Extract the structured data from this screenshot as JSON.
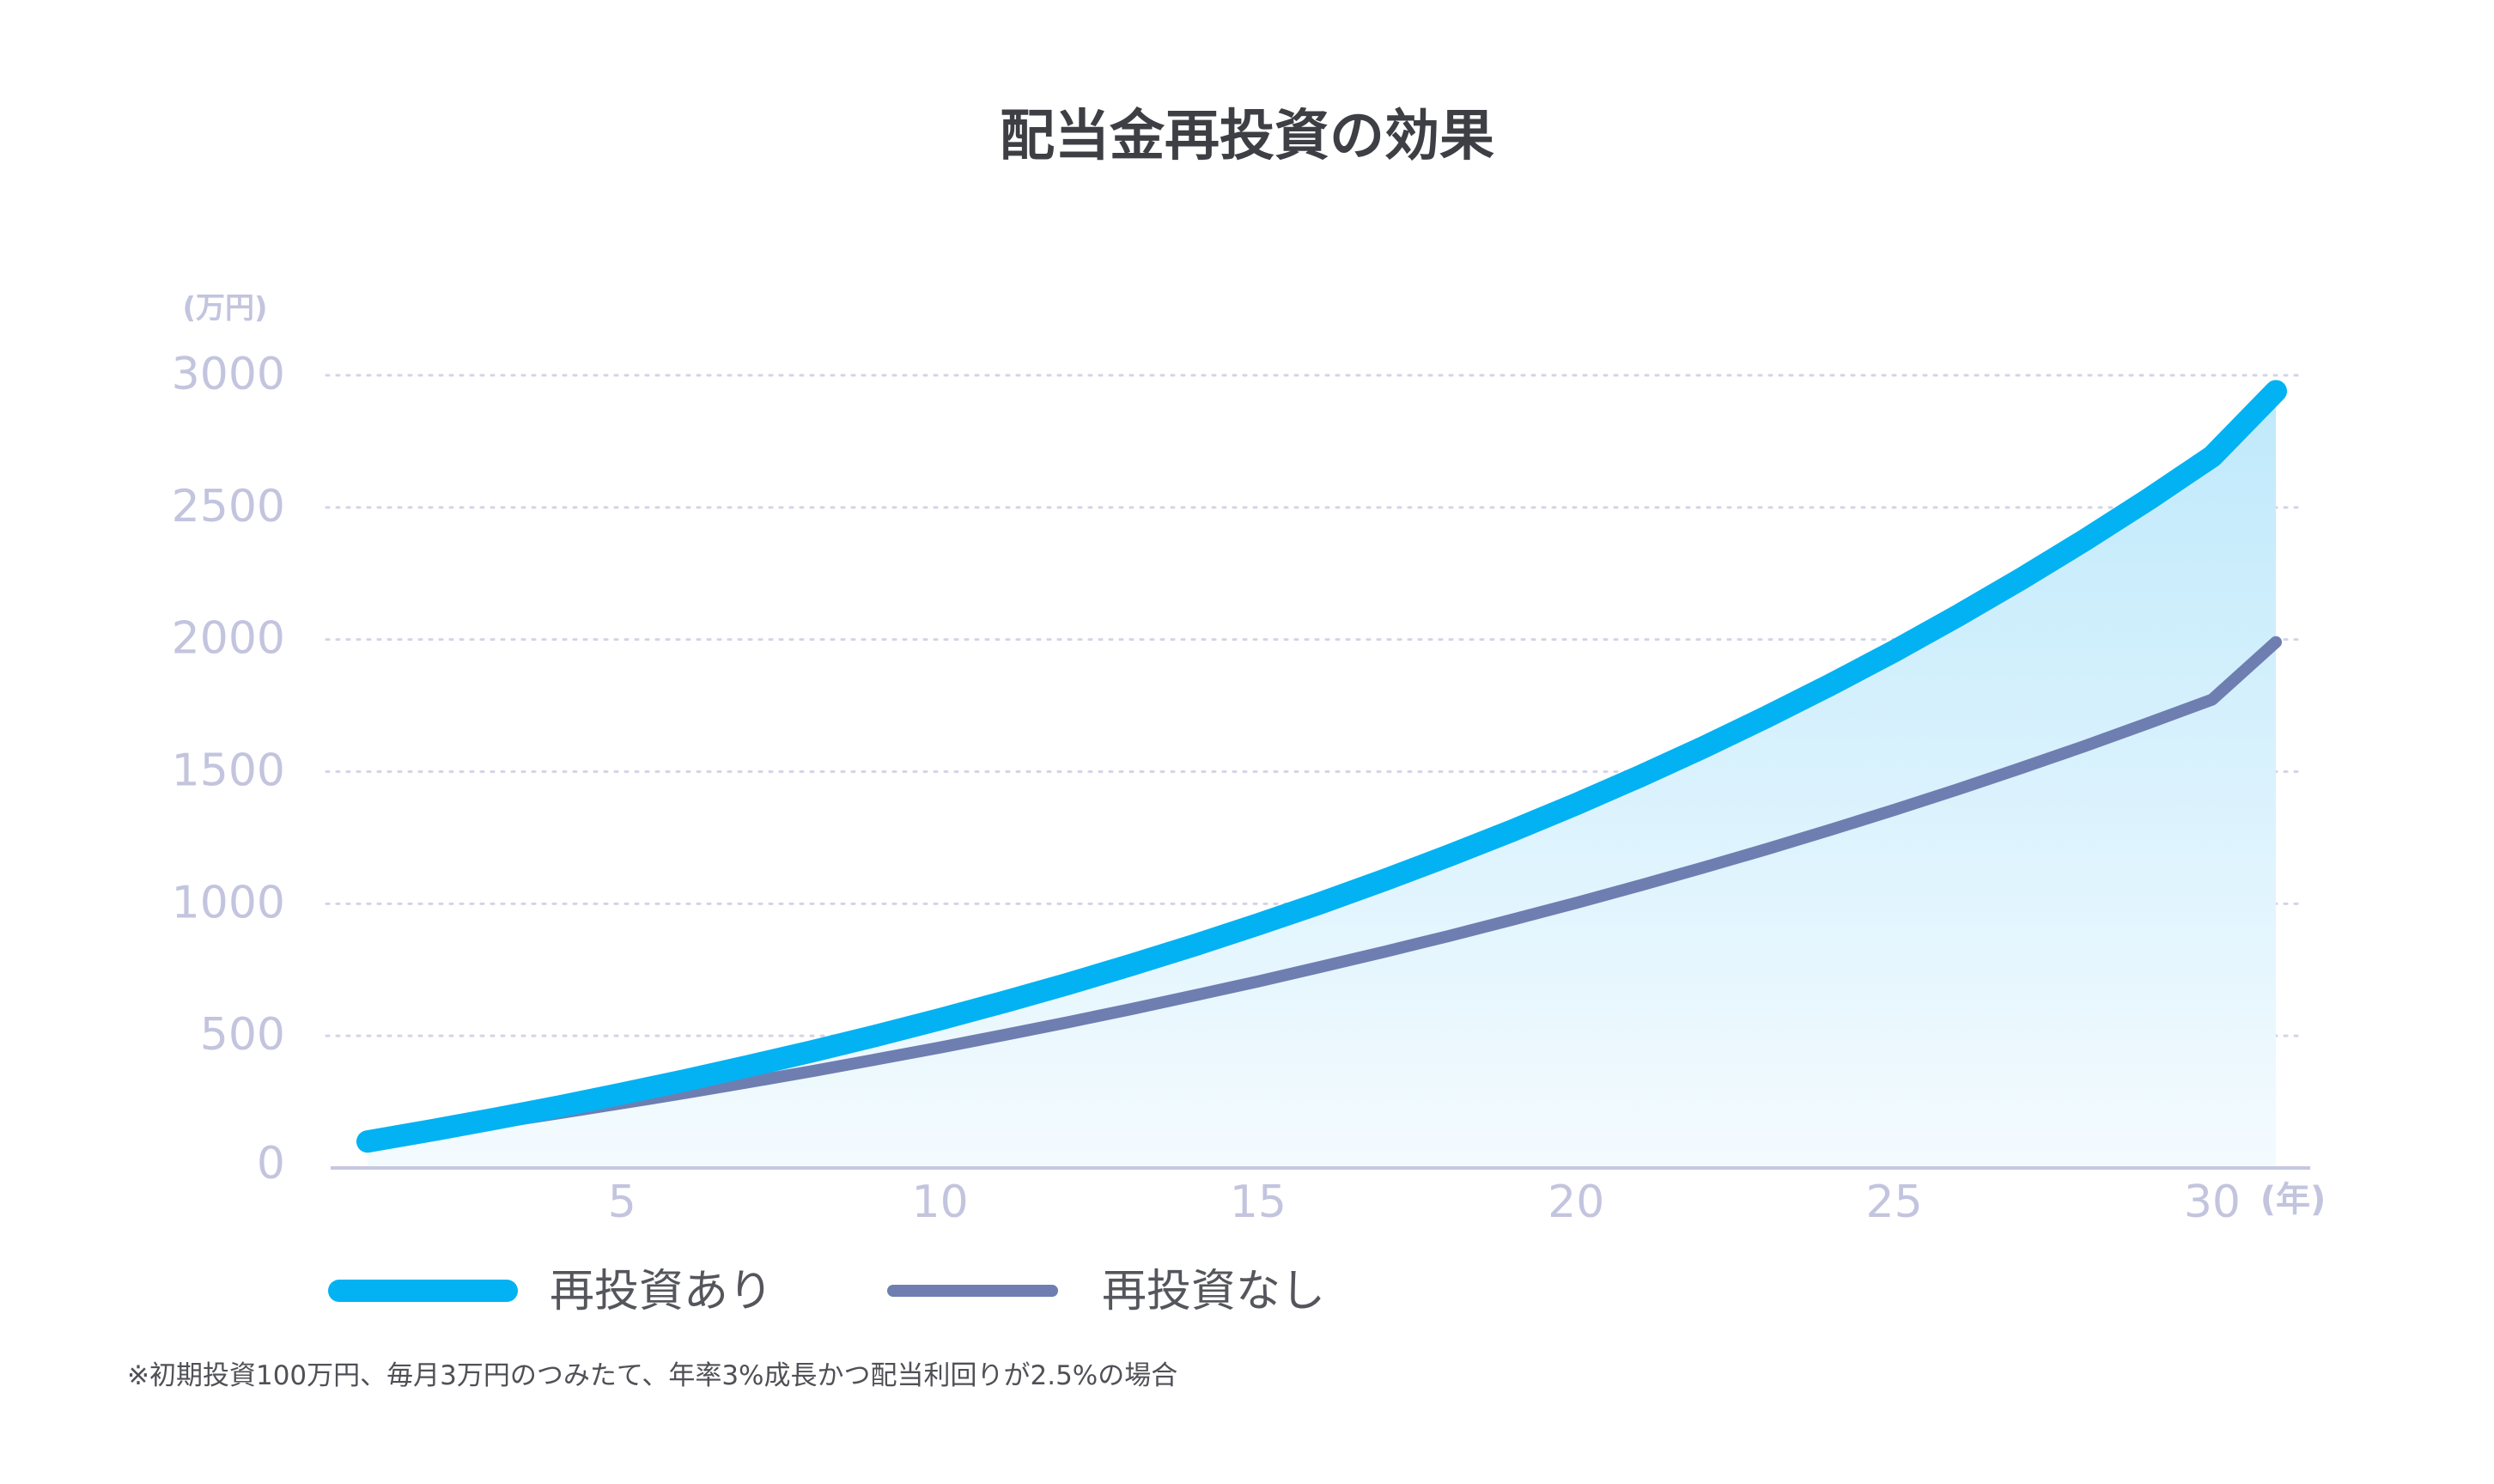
{
  "chart_data": {
    "type": "line",
    "title": "配当金再投資の効果",
    "y_unit_label": "(万円)",
    "x_unit_label": "(年)",
    "ylim": [
      0,
      3000
    ],
    "xlim": [
      1,
      31
    ],
    "y_ticks": [
      "0",
      "500",
      "1000",
      "1500",
      "2000",
      "2500",
      "3000"
    ],
    "x_ticks": [
      "5",
      "10",
      "15",
      "20",
      "25",
      "30"
    ],
    "grid": true,
    "legend_placement": "bottom-left",
    "series": [
      {
        "name": "再投資あり",
        "color": "#03b2f2",
        "x": [
          1,
          2,
          3,
          4,
          5,
          6,
          7,
          8,
          9,
          10,
          11,
          12,
          13,
          14,
          15,
          16,
          17,
          18,
          19,
          20,
          21,
          22,
          23,
          24,
          25,
          26,
          27,
          28,
          29,
          30,
          31
        ],
        "values": [
          100,
          142,
          186,
          232,
          281,
          332,
          386,
          442,
          501,
          563,
          628,
          696,
          768,
          843,
          922,
          1004,
          1091,
          1182,
          1277,
          1377,
          1482,
          1592,
          1708,
          1829,
          1956,
          2090,
          2230,
          2377,
          2531,
          2693,
          2940
        ]
      },
      {
        "name": "再投資なし",
        "color": "#6f7eb0",
        "x": [
          1,
          2,
          3,
          4,
          5,
          6,
          7,
          8,
          9,
          10,
          11,
          12,
          13,
          14,
          15,
          16,
          17,
          18,
          19,
          20,
          21,
          22,
          23,
          24,
          25,
          26,
          27,
          28,
          29,
          30,
          31
        ],
        "values": [
          100,
          135,
          170,
          207,
          245,
          284,
          325,
          367,
          411,
          456,
          503,
          551,
          601,
          653,
          706,
          762,
          819,
          878,
          940,
          1003,
          1069,
          1137,
          1207,
          1280,
          1355,
          1433,
          1514,
          1597,
          1684,
          1773,
          1990
        ]
      }
    ],
    "fill_between": {
      "upper": "再投資あり",
      "color_top": "#bfe9fb",
      "color_bottom": "#f4fbff"
    }
  },
  "footnote": "※初期投資100万円、毎月3万円のつみたて、年率3%成長かつ配当利回りが2.5%の場合",
  "colors": {
    "grid": "#d3d4e6",
    "axis": "#c6c7e0",
    "tick_text": "#c3c4de",
    "title_text": "#3d3f44"
  }
}
